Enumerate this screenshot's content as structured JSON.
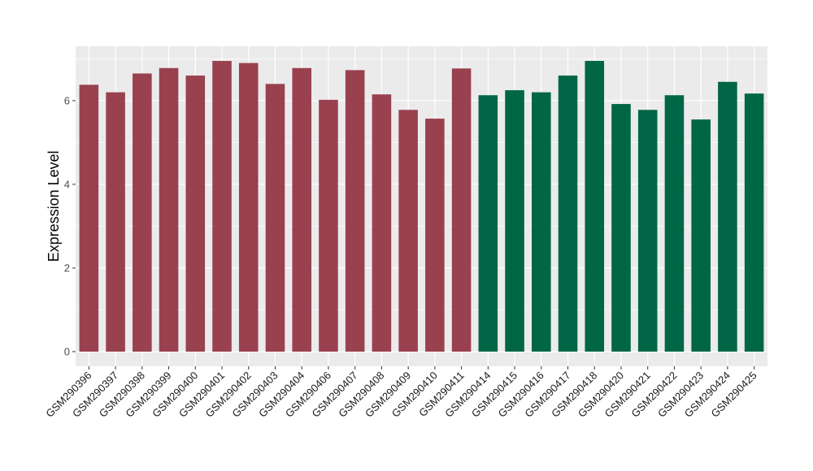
{
  "chart_data": {
    "type": "bar",
    "ylabel": "Expression Level",
    "xlabel": "",
    "ylim": [
      -0.35,
      7.3
    ],
    "yticks": [
      0,
      2,
      4,
      6
    ],
    "grid": true,
    "panel_background": "#ebebeb",
    "grid_color": "#ffffff",
    "categories": [
      "GSM290396",
      "GSM290397",
      "GSM290398",
      "GSM290399",
      "GSM290400",
      "GSM290401",
      "GSM290402",
      "GSM290403",
      "GSM290404",
      "GSM290406",
      "GSM290407",
      "GSM290408",
      "GSM290409",
      "GSM290410",
      "GSM290411",
      "GSM290414",
      "GSM290415",
      "GSM290416",
      "GSM290417",
      "GSM290418",
      "GSM290420",
      "GSM290421",
      "GSM290422",
      "GSM290423",
      "GSM290424",
      "GSM290425"
    ],
    "values": [
      6.38,
      6.2,
      6.65,
      6.78,
      6.6,
      6.95,
      6.9,
      6.4,
      6.78,
      6.02,
      6.73,
      6.15,
      5.78,
      5.57,
      6.77,
      6.13,
      6.25,
      6.2,
      6.6,
      6.95,
      5.92,
      5.78,
      6.13,
      5.55,
      6.45,
      6.17
    ],
    "bar_colors": [
      "#99414f",
      "#99414f",
      "#99414f",
      "#99414f",
      "#99414f",
      "#99414f",
      "#99414f",
      "#99414f",
      "#99414f",
      "#99414f",
      "#99414f",
      "#99414f",
      "#99414f",
      "#99414f",
      "#99414f",
      "#006646",
      "#006646",
      "#006646",
      "#006646",
      "#006646",
      "#006646",
      "#006646",
      "#006646",
      "#006646",
      "#006646",
      "#006646"
    ]
  }
}
